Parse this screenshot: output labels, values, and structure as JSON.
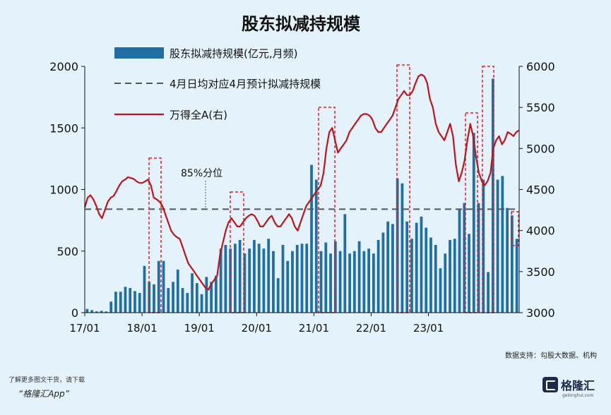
{
  "chart_data": {
    "type": "bar+line",
    "title": "股东拟减持规模",
    "legend": [
      {
        "label": "股东拟减持规模(亿元,月频)",
        "style": "bar",
        "color": "#1f6fa5"
      },
      {
        "label": "4月日均对应4月预计拟减持规模",
        "style": "dashed",
        "color": "#555555"
      },
      {
        "label": "万得全A(右)",
        "style": "line",
        "color": "#c0141b"
      }
    ],
    "x_ticks": [
      "17/01",
      "18/01",
      "19/01",
      "20/01",
      "21/01",
      "22/01",
      "23/01"
    ],
    "y_left": {
      "min": 0,
      "max": 2000,
      "ticks": [
        0,
        500,
        1000,
        1500,
        2000
      ]
    },
    "y_right": {
      "min": 3000,
      "max": 6000,
      "ticks": [
        3000,
        3500,
        4000,
        4500,
        5000,
        5500,
        6000
      ]
    },
    "bars_left_axis": [
      30,
      20,
      10,
      15,
      10,
      90,
      170,
      170,
      210,
      200,
      175,
      160,
      380,
      250,
      230,
      420,
      420,
      200,
      250,
      350,
      200,
      160,
      320,
      240,
      150,
      290,
      250,
      300,
      520,
      550,
      520,
      560,
      590,
      480,
      520,
      590,
      560,
      520,
      600,
      500,
      280,
      550,
      420,
      500,
      550,
      560,
      560,
      1200,
      1080,
      500,
      570,
      480,
      580,
      500,
      800,
      480,
      500,
      580,
      500,
      520,
      480,
      590,
      650,
      740,
      720,
      1090,
      1050,
      740,
      600,
      730,
      780,
      690,
      610,
      550,
      360,
      480,
      590,
      600,
      840,
      890,
      640,
      1460,
      890,
      1080,
      330,
      1900,
      1080,
      1110,
      850,
      790,
      600
    ],
    "line_right_axis": [
      4280,
      4400,
      4430,
      4380,
      4300,
      4200,
      4150,
      4250,
      4350,
      4400,
      4420,
      4480,
      4550,
      4600,
      4620,
      4650,
      4640,
      4630,
      4600,
      4580,
      4580,
      4600,
      4620,
      4550,
      4400,
      4380,
      4350,
      4300,
      4200,
      4100,
      4000,
      3950,
      3920,
      3900,
      3800,
      3700,
      3600,
      3550,
      3500,
      3450,
      3400,
      3350,
      3300,
      3280,
      3350,
      3400,
      3450,
      3700,
      3850,
      4000,
      4100,
      4150,
      4100,
      4050,
      4050,
      4100,
      4150,
      4180,
      4200,
      4180,
      4120,
      4050,
      4050,
      4100,
      4150,
      4180,
      4100,
      4050,
      4050,
      4100,
      4150,
      4200,
      4150,
      4050,
      4000,
      4100,
      4200,
      4300,
      4350,
      4400,
      4450,
      4500,
      4550,
      4700,
      5000,
      5200,
      5250,
      5100,
      4950,
      5000,
      5050,
      5100,
      5200,
      5250,
      5300,
      5350,
      5400,
      5420,
      5420,
      5400,
      5350,
      5250,
      5200,
      5200,
      5250,
      5300,
      5350,
      5400,
      5500,
      5600,
      5650,
      5700,
      5650,
      5650,
      5700,
      5800,
      5880,
      5900,
      5880,
      5800,
      5600,
      5500,
      5300,
      5200,
      5150,
      5100,
      5200,
      5300,
      5150,
      4800,
      4600,
      4700,
      4850,
      5100,
      5300,
      5150,
      4900,
      4700,
      4600,
      4550,
      4600,
      4700,
      5000,
      5100,
      5150,
      5050,
      5100,
      5200,
      5180,
      5150,
      5200,
      5220
    ],
    "dashed_reference_left_axis": 840,
    "annotation": "85%分位",
    "source": "数据支持：勾股大数据、机构"
  },
  "footer": {
    "note": "了解更多图文干货，请下载",
    "app": "“格隆汇App”",
    "logo_text": "格隆汇",
    "logo_sub": "gelonghui.com"
  }
}
